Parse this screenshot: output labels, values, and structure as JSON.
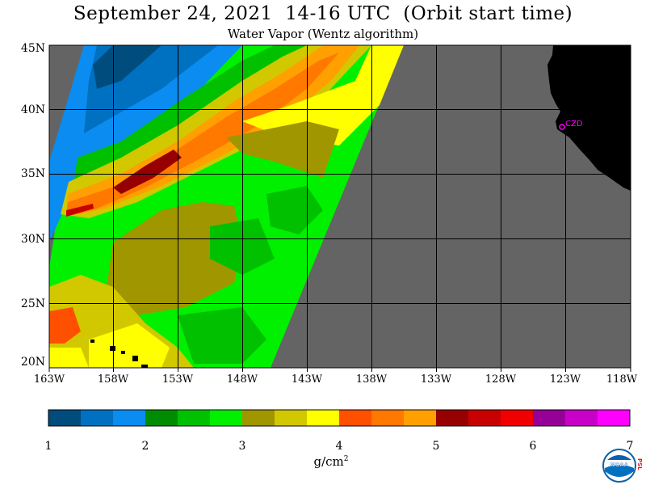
{
  "title": "September 24, 2021  14-16 UTC  (Orbit start time)",
  "subtitle": "Water Vapor (Wentz algorithm)",
  "lat_labels": [
    "45N",
    "40N",
    "35N",
    "30N",
    "25N",
    "20N"
  ],
  "lon_labels": [
    "163W",
    "158W",
    "153W",
    "148W",
    "143W",
    "138W",
    "133W",
    "128W",
    "123W",
    "118W"
  ],
  "station_label": "CZD",
  "colorbar": {
    "tick_labels": [
      "1",
      "2",
      "3",
      "4",
      "5",
      "6",
      "7"
    ],
    "units_base": "g/cm",
    "units_exp": "2",
    "colors": [
      "#004c7c",
      "#0070c0",
      "#0a8cf0",
      "#008c00",
      "#00c000",
      "#00f000",
      "#a09600",
      "#d2c800",
      "#ffff00",
      "#ff5000",
      "#ff7800",
      "#ffa000",
      "#960000",
      "#c80000",
      "#f00000",
      "#960096",
      "#c800c8",
      "#ff00ff"
    ]
  },
  "map_colors": {
    "land": "#000000",
    "no_data": "#646464",
    "grid": "#000000",
    "station": "#ff00ff"
  },
  "logo": {
    "text": "NOAA",
    "side_letters": "PSL"
  }
}
